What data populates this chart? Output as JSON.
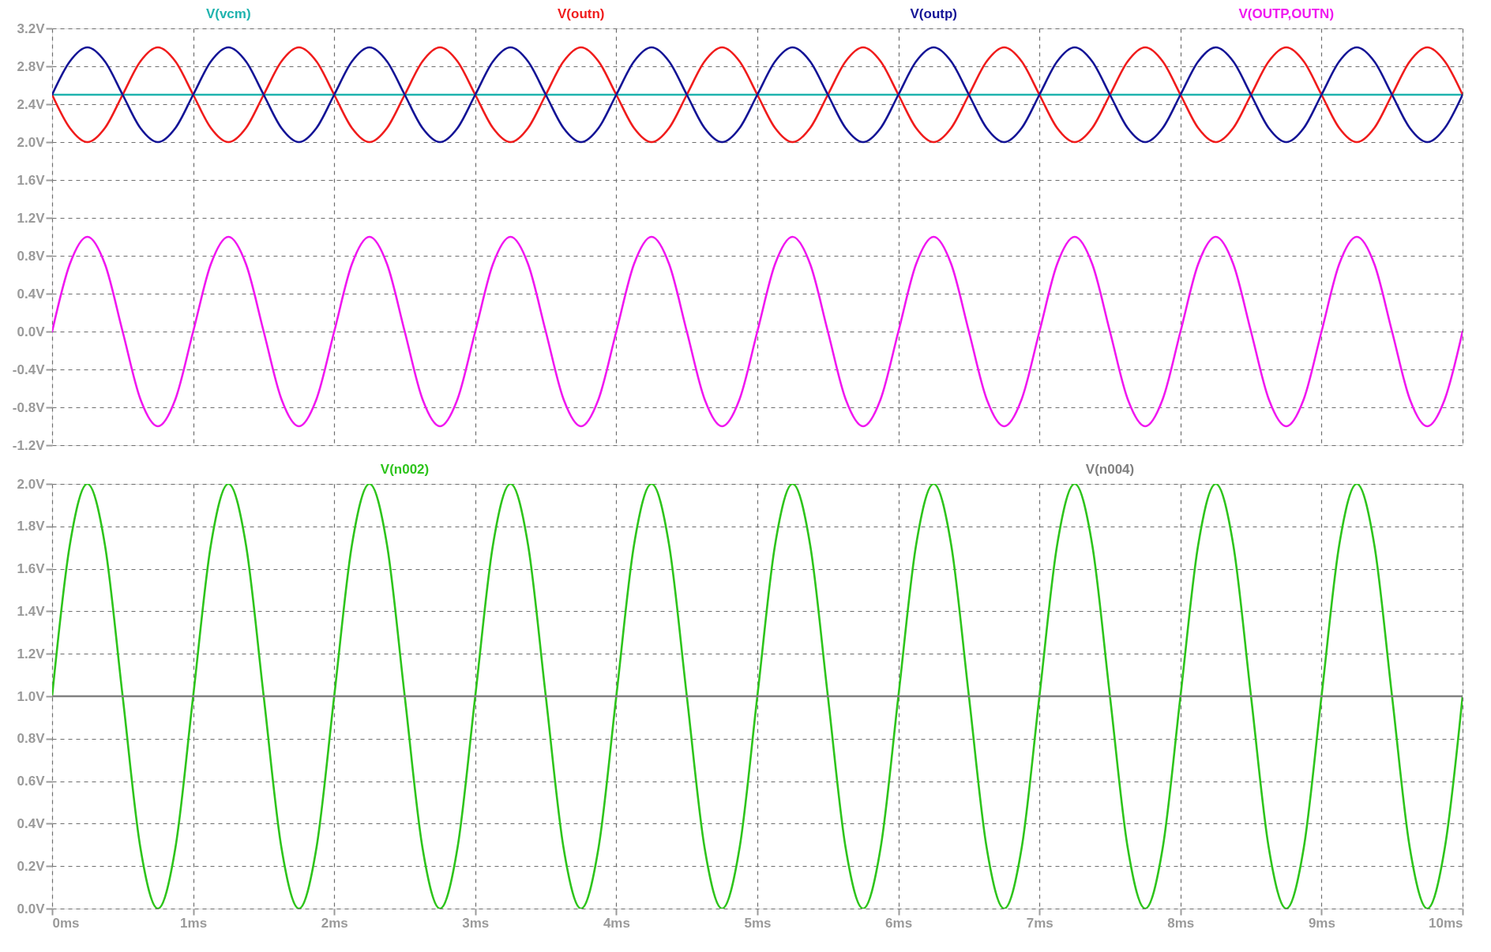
{
  "chart_data": [
    {
      "type": "line",
      "legend": "top",
      "grid": true,
      "tick_labels": "y",
      "xlim": [
        0,
        10
      ],
      "xticks": [
        {
          "value": 0,
          "label": null
        },
        {
          "value": 1,
          "label": null
        },
        {
          "value": 2,
          "label": null
        },
        {
          "value": 3,
          "label": null
        },
        {
          "value": 4,
          "label": null
        },
        {
          "value": 5,
          "label": null
        },
        {
          "value": 6,
          "label": null
        },
        {
          "value": 7,
          "label": null
        },
        {
          "value": 8,
          "label": null
        },
        {
          "value": 9,
          "label": null
        },
        {
          "value": 10,
          "label": null
        }
      ],
      "ylim": [
        -1.2,
        3.2
      ],
      "yticks": [
        {
          "value": 3.2,
          "label": "3.2V"
        },
        {
          "value": 2.8,
          "label": "2.8V"
        },
        {
          "value": 2.4,
          "label": "2.4V"
        },
        {
          "value": 2.0,
          "label": "2.0V"
        },
        {
          "value": 1.6,
          "label": "1.6V"
        },
        {
          "value": 1.2,
          "label": "1.2V"
        },
        {
          "value": 0.8,
          "label": "0.8V"
        },
        {
          "value": 0.4,
          "label": "0.4V"
        },
        {
          "value": 0,
          "label": "0.0V"
        },
        {
          "value": -0.4,
          "label": "-0.4V"
        },
        {
          "value": -0.8,
          "label": "-0.8V"
        },
        {
          "value": -1.2,
          "label": "-1.2V"
        }
      ],
      "x": [
        0,
        0.125,
        0.25,
        0.375,
        0.5,
        0.625,
        0.75,
        0.875,
        1,
        1.125,
        1.25,
        1.375,
        1.5,
        1.625,
        1.75,
        1.875,
        2,
        2.125,
        2.25,
        2.375,
        2.5,
        2.625,
        2.75,
        2.875,
        3,
        3.125,
        3.25,
        3.375,
        3.5,
        3.625,
        3.75,
        3.875,
        4,
        4.125,
        4.25,
        4.375,
        4.5,
        4.625,
        4.75,
        4.875,
        5,
        5.125,
        5.25,
        5.375,
        5.5,
        5.625,
        5.75,
        5.875,
        6,
        6.125,
        6.25,
        6.375,
        6.5,
        6.625,
        6.75,
        6.875,
        7,
        7.125,
        7.25,
        7.375,
        7.5,
        7.625,
        7.75,
        7.875,
        8,
        8.125,
        8.25,
        8.375,
        8.5,
        8.625,
        8.75,
        8.875,
        9,
        9.125,
        9.25,
        9.375,
        9.5,
        9.625,
        9.75,
        9.875,
        10
      ],
      "series": [
        {
          "name": "V(vcm)",
          "color": "#1fb3ae",
          "values": [
            2.5,
            2.5,
            2.5,
            2.5,
            2.5,
            2.5,
            2.5,
            2.5,
            2.5,
            2.5,
            2.5,
            2.5,
            2.5,
            2.5,
            2.5,
            2.5,
            2.5,
            2.5,
            2.5,
            2.5,
            2.5,
            2.5,
            2.5,
            2.5,
            2.5,
            2.5,
            2.5,
            2.5,
            2.5,
            2.5,
            2.5,
            2.5,
            2.5,
            2.5,
            2.5,
            2.5,
            2.5,
            2.5,
            2.5,
            2.5,
            2.5,
            2.5,
            2.5,
            2.5,
            2.5,
            2.5,
            2.5,
            2.5,
            2.5,
            2.5,
            2.5,
            2.5,
            2.5,
            2.5,
            2.5,
            2.5,
            2.5,
            2.5,
            2.5,
            2.5,
            2.5,
            2.5,
            2.5,
            2.5,
            2.5,
            2.5,
            2.5,
            2.5,
            2.5,
            2.5,
            2.5,
            2.5,
            2.5,
            2.5,
            2.5,
            2.5,
            2.5,
            2.5,
            2.5,
            2.5,
            2.5
          ]
        },
        {
          "name": "V(outn)",
          "color": "#f01c1c",
          "values": [
            2.5,
            2.15,
            2,
            2.15,
            2.5,
            2.85,
            3,
            2.85,
            2.5,
            2.15,
            2,
            2.15,
            2.5,
            2.85,
            3,
            2.85,
            2.5,
            2.15,
            2,
            2.15,
            2.5,
            2.85,
            3,
            2.85,
            2.5,
            2.15,
            2,
            2.15,
            2.5,
            2.85,
            3,
            2.85,
            2.5,
            2.15,
            2,
            2.15,
            2.5,
            2.85,
            3,
            2.85,
            2.5,
            2.15,
            2,
            2.15,
            2.5,
            2.85,
            3,
            2.85,
            2.5,
            2.15,
            2,
            2.15,
            2.5,
            2.85,
            3,
            2.85,
            2.5,
            2.15,
            2,
            2.15,
            2.5,
            2.85,
            3,
            2.85,
            2.5,
            2.15,
            2,
            2.15,
            2.5,
            2.85,
            3,
            2.85,
            2.5,
            2.15,
            2,
            2.15,
            2.5,
            2.85,
            3,
            2.85,
            2.5
          ]
        },
        {
          "name": "V(outp)",
          "color": "#141496",
          "values": [
            2.5,
            2.85,
            3,
            2.85,
            2.5,
            2.15,
            2,
            2.15,
            2.5,
            2.85,
            3,
            2.85,
            2.5,
            2.15,
            2,
            2.15,
            2.5,
            2.85,
            3,
            2.85,
            2.5,
            2.15,
            2,
            2.15,
            2.5,
            2.85,
            3,
            2.85,
            2.5,
            2.15,
            2,
            2.15,
            2.5,
            2.85,
            3,
            2.85,
            2.5,
            2.15,
            2,
            2.15,
            2.5,
            2.85,
            3,
            2.85,
            2.5,
            2.15,
            2,
            2.15,
            2.5,
            2.85,
            3,
            2.85,
            2.5,
            2.15,
            2,
            2.15,
            2.5,
            2.85,
            3,
            2.85,
            2.5,
            2.15,
            2,
            2.15,
            2.5,
            2.85,
            3,
            2.85,
            2.5,
            2.15,
            2,
            2.15,
            2.5,
            2.85,
            3,
            2.85,
            2.5,
            2.15,
            2,
            2.15,
            2.5
          ]
        },
        {
          "name": "V(OUTP,OUTN)",
          "color": "#f018f0",
          "values": [
            0,
            0.71,
            1,
            0.71,
            0,
            -0.71,
            -1,
            -0.71,
            0,
            0.71,
            1,
            0.71,
            0,
            -0.71,
            -1,
            -0.71,
            0,
            0.71,
            1,
            0.71,
            0,
            -0.71,
            -1,
            -0.71,
            0,
            0.71,
            1,
            0.71,
            0,
            -0.71,
            -1,
            -0.71,
            0,
            0.71,
            1,
            0.71,
            0,
            -0.71,
            -1,
            -0.71,
            0,
            0.71,
            1,
            0.71,
            0,
            -0.71,
            -1,
            -0.71,
            0,
            0.71,
            1,
            0.71,
            0,
            -0.71,
            -1,
            -0.71,
            0,
            0.71,
            1,
            0.71,
            0,
            -0.71,
            -1,
            -0.71,
            0,
            0.71,
            1,
            0.71,
            0,
            -0.71,
            -1,
            -0.71,
            0,
            0.71,
            1,
            0.71,
            0,
            -0.71,
            -1,
            -0.71,
            0
          ]
        }
      ]
    },
    {
      "type": "line",
      "legend": "top",
      "grid": true,
      "xlim": [
        0,
        10
      ],
      "xticks": [
        {
          "value": 0,
          "label": "0ms"
        },
        {
          "value": 1,
          "label": "1ms"
        },
        {
          "value": 2,
          "label": "2ms"
        },
        {
          "value": 3,
          "label": "3ms"
        },
        {
          "value": 4,
          "label": "4ms"
        },
        {
          "value": 5,
          "label": "5ms"
        },
        {
          "value": 6,
          "label": "6ms"
        },
        {
          "value": 7,
          "label": "7ms"
        },
        {
          "value": 8,
          "label": "8ms"
        },
        {
          "value": 9,
          "label": "9ms"
        },
        {
          "value": 10,
          "label": "10ms"
        }
      ],
      "ylim": [
        0,
        2.0
      ],
      "yticks": [
        {
          "value": 2.0,
          "label": "2.0V"
        },
        {
          "value": 1.8,
          "label": "1.8V"
        },
        {
          "value": 1.6,
          "label": "1.6V"
        },
        {
          "value": 1.4,
          "label": "1.4V"
        },
        {
          "value": 1.2,
          "label": "1.2V"
        },
        {
          "value": 1.0,
          "label": "1.0V"
        },
        {
          "value": 0.8,
          "label": "0.8V"
        },
        {
          "value": 0.6,
          "label": "0.6V"
        },
        {
          "value": 0.4,
          "label": "0.4V"
        },
        {
          "value": 0.2,
          "label": "0.2V"
        },
        {
          "value": 0,
          "label": "0.0V"
        }
      ],
      "x": [
        0,
        0.125,
        0.25,
        0.375,
        0.5,
        0.625,
        0.75,
        0.875,
        1,
        1.125,
        1.25,
        1.375,
        1.5,
        1.625,
        1.75,
        1.875,
        2,
        2.125,
        2.25,
        2.375,
        2.5,
        2.625,
        2.75,
        2.875,
        3,
        3.125,
        3.25,
        3.375,
        3.5,
        3.625,
        3.75,
        3.875,
        4,
        4.125,
        4.25,
        4.375,
        4.5,
        4.625,
        4.75,
        4.875,
        5,
        5.125,
        5.25,
        5.375,
        5.5,
        5.625,
        5.75,
        5.875,
        6,
        6.125,
        6.25,
        6.375,
        6.5,
        6.625,
        6.75,
        6.875,
        7,
        7.125,
        7.25,
        7.375,
        7.5,
        7.625,
        7.75,
        7.875,
        8,
        8.125,
        8.25,
        8.375,
        8.5,
        8.625,
        8.75,
        8.875,
        9,
        9.125,
        9.25,
        9.375,
        9.5,
        9.625,
        9.75,
        9.875,
        10
      ],
      "series": [
        {
          "name": "V(n002)",
          "color": "#2ec41c",
          "values": [
            1,
            1.71,
            2,
            1.71,
            1,
            0.29,
            0,
            0.29,
            1,
            1.71,
            2,
            1.71,
            1,
            0.29,
            0,
            0.29,
            1,
            1.71,
            2,
            1.71,
            1,
            0.29,
            0,
            0.29,
            1,
            1.71,
            2,
            1.71,
            1,
            0.29,
            0,
            0.29,
            1,
            1.71,
            2,
            1.71,
            1,
            0.29,
            0,
            0.29,
            1,
            1.71,
            2,
            1.71,
            1,
            0.29,
            0,
            0.29,
            1,
            1.71,
            2,
            1.71,
            1,
            0.29,
            0,
            0.29,
            1,
            1.71,
            2,
            1.71,
            1,
            0.29,
            0,
            0.29,
            1,
            1.71,
            2,
            1.71,
            1,
            0.29,
            0,
            0.29,
            1,
            1.71,
            2,
            1.71,
            1,
            0.29,
            0,
            0.29,
            1
          ]
        },
        {
          "name": "V(n004)",
          "color": "#808080",
          "values": [
            1,
            1,
            1,
            1,
            1,
            1,
            1,
            1,
            1,
            1,
            1,
            1,
            1,
            1,
            1,
            1,
            1,
            1,
            1,
            1,
            1,
            1,
            1,
            1,
            1,
            1,
            1,
            1,
            1,
            1,
            1,
            1,
            1,
            1,
            1,
            1,
            1,
            1,
            1,
            1,
            1,
            1,
            1,
            1,
            1,
            1,
            1,
            1,
            1,
            1,
            1,
            1,
            1,
            1,
            1,
            1,
            1,
            1,
            1,
            1,
            1,
            1,
            1,
            1,
            1,
            1,
            1,
            1,
            1,
            1,
            1,
            1,
            1,
            1,
            1,
            1,
            1,
            1,
            1,
            1,
            1
          ]
        }
      ]
    }
  ]
}
